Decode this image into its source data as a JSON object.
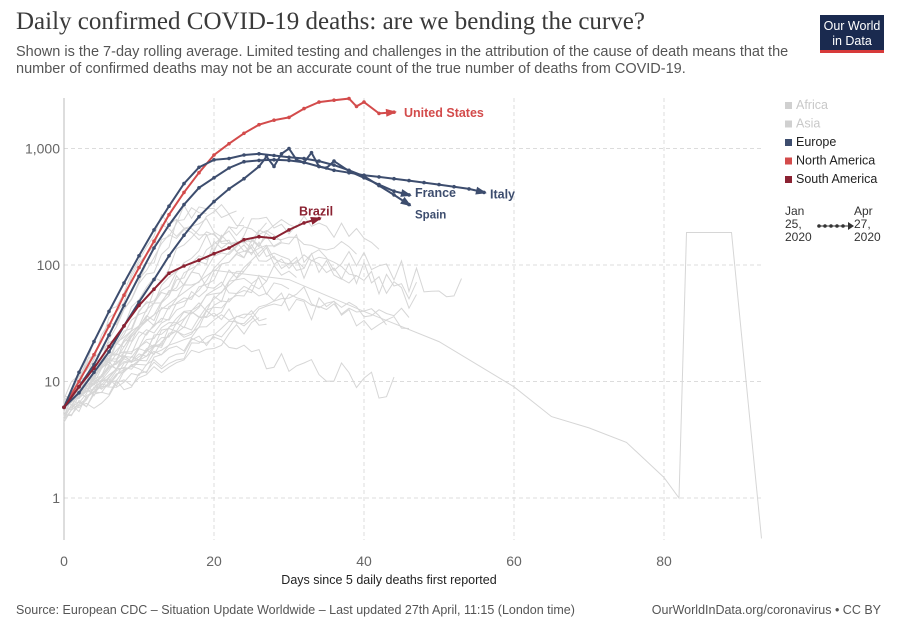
{
  "header": {
    "title": "Daily confirmed COVID-19 deaths: are we bending the curve?",
    "subtitle": "Shown is the 7-day rolling average. Limited testing and challenges in the attribution of the cause of death means that the number of confirmed deaths may not be an accurate count of the true number of deaths from COVID-19."
  },
  "logo": {
    "line1": "Our World",
    "line2": "in Data"
  },
  "footer": {
    "source": "Source: European CDC – Situation Update Worldwide – Last updated 27th April, 11:15 (London time)",
    "credit": "OurWorldInData.org/coronavirus • CC BY"
  },
  "colors": {
    "europe": "#3d4d6e",
    "north_america": "#d34b4b",
    "south_america": "#8b2232",
    "background_lines": "#d6d6d6",
    "legend_faded": "#c8c8c8"
  },
  "legend": {
    "items": [
      {
        "label": "Africa",
        "color": "#d0d0d0",
        "faded": true
      },
      {
        "label": "Asia",
        "color": "#d0d0d0",
        "faded": true
      },
      {
        "label": "Europe",
        "color": "#3d4d6e",
        "faded": false
      },
      {
        "label": "North America",
        "color": "#d34b4b",
        "faded": false
      },
      {
        "label": "South America",
        "color": "#8b2232",
        "faded": false
      }
    ]
  },
  "timeline": {
    "start_month": "Jan",
    "start_day": "25,",
    "start_year": "2020",
    "end_month": "Apr",
    "end_day": "27,",
    "end_year": "2020"
  },
  "chart_data": {
    "type": "line",
    "scale": "log",
    "xlabel": "Days since 5 daily deaths first reported",
    "ylabel": "",
    "xlim": [
      0,
      93
    ],
    "ylim": [
      0.45,
      3000
    ],
    "x_ticks": [
      0,
      20,
      40,
      60,
      80
    ],
    "x_tick_labels": [
      "0",
      "20",
      "40",
      "60",
      "80"
    ],
    "y_ticks": [
      1,
      10,
      100,
      1000
    ],
    "y_tick_labels": [
      "1",
      "10",
      "100",
      "1,000"
    ],
    "series": [
      {
        "name": "United States",
        "region": "north_america",
        "color": "#d34b4b",
        "x": [
          0,
          2,
          4,
          6,
          8,
          10,
          12,
          14,
          16,
          18,
          20,
          22,
          24,
          26,
          28,
          30,
          32,
          34,
          36,
          38,
          39,
          40,
          42,
          44
        ],
        "y": [
          6,
          10,
          17,
          30,
          55,
          95,
          160,
          270,
          420,
          620,
          880,
          1100,
          1350,
          1600,
          1750,
          1850,
          2200,
          2500,
          2600,
          2680,
          2300,
          2500,
          2000,
          2050
        ],
        "label": "United States"
      },
      {
        "name": "Italy",
        "region": "europe",
        "color": "#3d4d6e",
        "x": [
          0,
          2,
          4,
          6,
          8,
          10,
          12,
          14,
          16,
          18,
          20,
          22,
          24,
          26,
          28,
          30,
          32,
          34,
          36,
          38,
          40,
          42,
          44,
          46,
          48,
          50,
          52,
          54,
          56
        ],
        "y": [
          6,
          9,
          14,
          25,
          45,
          80,
          140,
          220,
          330,
          460,
          560,
          680,
          770,
          790,
          800,
          790,
          760,
          700,
          650,
          620,
          590,
          570,
          550,
          530,
          510,
          490,
          470,
          450,
          420
        ],
        "label": "Italy"
      },
      {
        "name": "Spain",
        "region": "europe",
        "color": "#3d4d6e",
        "x": [
          0,
          2,
          4,
          6,
          8,
          10,
          12,
          14,
          16,
          18,
          20,
          22,
          24,
          26,
          28,
          30,
          32,
          34,
          36,
          38,
          40,
          42,
          44,
          46
        ],
        "y": [
          6,
          12,
          22,
          40,
          70,
          120,
          200,
          320,
          500,
          690,
          800,
          820,
          880,
          900,
          870,
          840,
          820,
          780,
          720,
          650,
          580,
          480,
          400,
          330
        ],
        "label": "Spain"
      },
      {
        "name": "France",
        "region": "europe",
        "color": "#3d4d6e",
        "x": [
          0,
          2,
          4,
          6,
          8,
          10,
          12,
          14,
          16,
          18,
          20,
          22,
          24,
          26,
          27,
          28,
          29,
          30,
          31,
          32,
          33,
          34,
          35,
          36,
          38,
          40,
          42,
          44,
          46
        ],
        "y": [
          6,
          8,
          12,
          18,
          30,
          48,
          75,
          120,
          180,
          260,
          350,
          450,
          550,
          700,
          850,
          700,
          900,
          1000,
          800,
          760,
          920,
          700,
          680,
          780,
          640,
          560,
          490,
          430,
          400
        ],
        "label": "France"
      },
      {
        "name": "Brazil",
        "region": "south_america",
        "color": "#8b2232",
        "x": [
          0,
          2,
          4,
          6,
          8,
          10,
          12,
          14,
          16,
          18,
          20,
          22,
          24,
          26,
          28,
          30,
          32,
          34
        ],
        "y": [
          6,
          9,
          13,
          20,
          30,
          45,
          62,
          85,
          98,
          110,
          125,
          140,
          165,
          175,
          170,
          200,
          230,
          250
        ],
        "label": "Brazil"
      }
    ],
    "background_series_count": 32
  }
}
